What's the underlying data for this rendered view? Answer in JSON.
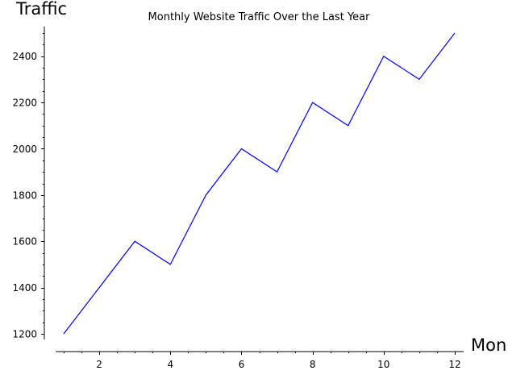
{
  "chart_data": {
    "type": "line",
    "title": "Monthly Website Traffic Over the Last Year",
    "xlabel": "Mon",
    "ylabel": "Traffic",
    "x": [
      1,
      2,
      3,
      4,
      5,
      6,
      7,
      8,
      9,
      10,
      11,
      12
    ],
    "series": [
      {
        "values": [
          1200,
          1400,
          1600,
          1500,
          1800,
          2000,
          1900,
          2200,
          2100,
          2400,
          2300,
          2500
        ],
        "color": "#0000ff"
      }
    ],
    "x_ticks": [
      2,
      4,
      6,
      8,
      10,
      12
    ],
    "x_tick_labels": [
      "2",
      "4",
      "6",
      "8",
      "10",
      "12"
    ],
    "y_ticks": [
      1200,
      1400,
      1600,
      1800,
      2000,
      2200,
      2400
    ],
    "y_tick_labels": [
      "1200",
      "1400",
      "1600",
      "1800",
      "2000",
      "2200",
      "2400"
    ],
    "xlim": [
      0.76,
      12.24
    ],
    "ylim": [
      1180,
      2520
    ],
    "grid": false,
    "legend": "none"
  }
}
